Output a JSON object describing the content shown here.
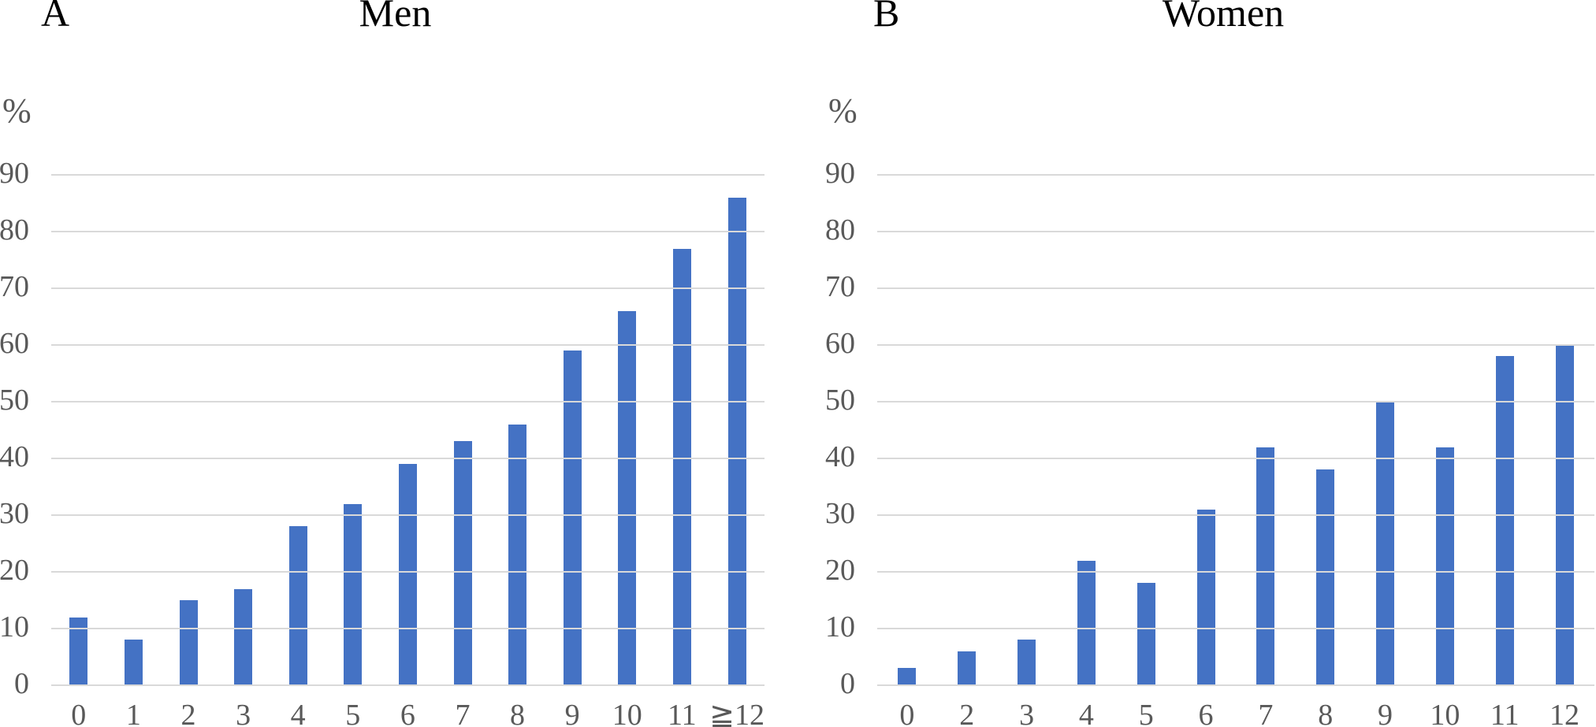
{
  "figure": {
    "background": "#ffffff",
    "text_color": "#000000",
    "axis_text_color": "#595959",
    "gridline_color": "#D9D9D9"
  },
  "chart_data": [
    {
      "type": "bar",
      "panel": "A",
      "title": "Men",
      "ylabel": "%",
      "xlabel": "",
      "categories": [
        "0",
        "1",
        "2",
        "3",
        "4",
        "5",
        "6",
        "7",
        "8",
        "9",
        "10",
        "11",
        "≧12"
      ],
      "values": [
        12,
        8,
        15,
        17,
        28,
        32,
        39,
        43,
        46,
        59,
        66,
        77,
        86
      ],
      "ylim": [
        0,
        90
      ],
      "yticks": [
        0,
        10,
        20,
        30,
        40,
        50,
        60,
        70,
        80,
        90
      ],
      "grid": true,
      "legend": "none",
      "bar_color": "#4472C4"
    },
    {
      "type": "bar",
      "panel": "B",
      "title": "Women",
      "ylabel": "%",
      "xlabel": "",
      "categories": [
        "0",
        "2",
        "3",
        "4",
        "5",
        "6",
        "7",
        "8",
        "9",
        "10",
        "11",
        "12"
      ],
      "values": [
        3,
        6,
        8,
        22,
        18,
        31,
        42,
        38,
        50,
        42,
        58,
        60
      ],
      "ylim": [
        0,
        90
      ],
      "yticks": [
        0,
        10,
        20,
        30,
        40,
        50,
        60,
        70,
        80,
        90
      ],
      "grid": true,
      "legend": "none",
      "bar_color": "#4472C4"
    }
  ]
}
